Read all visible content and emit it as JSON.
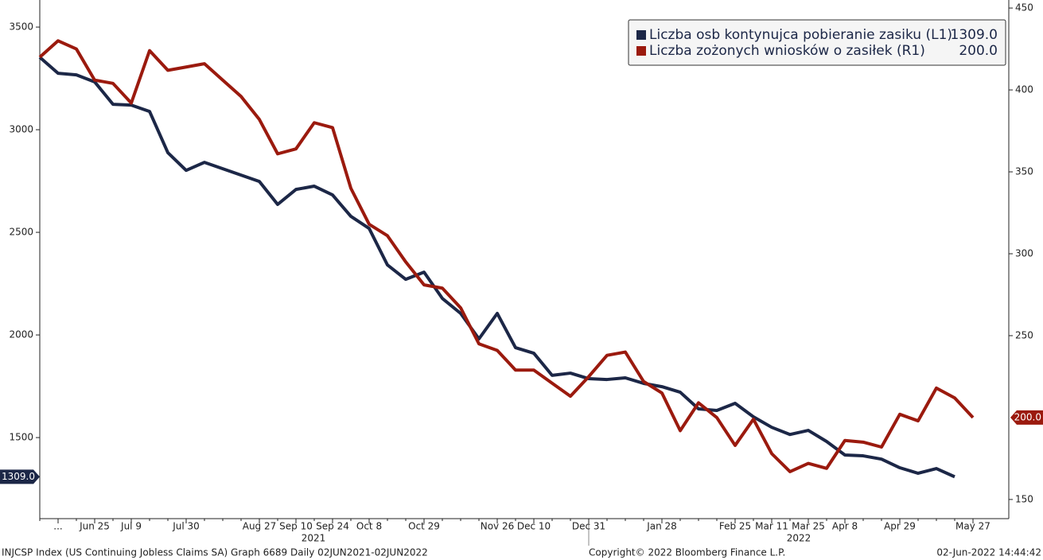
{
  "chart_data": {
    "type": "line",
    "categories": [
      null,
      "...",
      null,
      "Jun 25",
      null,
      "Jul 9",
      null,
      null,
      "Jul 30",
      null,
      null,
      null,
      "Aug 27",
      null,
      "Sep 10",
      null,
      "Sep 24",
      null,
      "Oct 8",
      null,
      null,
      "Oct 29",
      null,
      null,
      null,
      "Nov 26",
      null,
      "Dec 10",
      null,
      null,
      "Dec 31",
      null,
      null,
      null,
      "Jan 28",
      null,
      null,
      null,
      "Feb 25",
      null,
      "Mar 11",
      null,
      "Mar 25",
      null,
      "Apr 8",
      null,
      null,
      "Apr 29",
      null,
      null,
      null,
      "May 27"
    ],
    "years": [
      "2021",
      "2022"
    ],
    "series": [
      {
        "name": "Liczba osb kontynujca pobieranie zasiku (L1)",
        "color": "#1c2747",
        "axis": "y",
        "values": [
          3353,
          3275,
          3267,
          3233,
          3124,
          3120,
          3089,
          2888,
          2802,
          2841,
          2810,
          2779,
          2748,
          2636,
          2709,
          2725,
          2682,
          2578,
          2519,
          2341,
          2271,
          2306,
          2178,
          2105,
          1981,
          2105,
          1938,
          1911,
          1803,
          1814,
          1787,
          1783,
          1791,
          1764,
          1748,
          1721,
          1640,
          1632,
          1667,
          1601,
          1550,
          1515,
          1535,
          1481,
          1415,
          1411,
          1395,
          1353,
          1326,
          1349,
          1309,
          null
        ],
        "value_labels": [
          null,
          null,
          null,
          null,
          null,
          null,
          null,
          null,
          null,
          null,
          null,
          null,
          null,
          null,
          null,
          null,
          null,
          null,
          null,
          null,
          null,
          null,
          null,
          null,
          null,
          null,
          null,
          null,
          null,
          null,
          null,
          null,
          null,
          null,
          null,
          null,
          null,
          null,
          null,
          null,
          null,
          null,
          null,
          null,
          null,
          null,
          null,
          null,
          null,
          null,
          "1309.0",
          null
        ]
      },
      {
        "name": "Liczba zożonych wniosków o zasiłek (R1)",
        "color": "#9b1a0e",
        "axis": "y2",
        "values": [
          420,
          430,
          425,
          406,
          404,
          392,
          424,
          412,
          414,
          416,
          406,
          396,
          382,
          361,
          364,
          380,
          377,
          340,
          318,
          311,
          295,
          281,
          279,
          267,
          245,
          241,
          229,
          229,
          221,
          213,
          225,
          238,
          240,
          222,
          215,
          192,
          209,
          200,
          183,
          199,
          178,
          167,
          172,
          169,
          186,
          185,
          182,
          202,
          198,
          218,
          212,
          200
        ],
        "value_labels": [
          null,
          null,
          null,
          null,
          null,
          null,
          null,
          null,
          null,
          null,
          null,
          null,
          null,
          null,
          null,
          null,
          null,
          null,
          null,
          null,
          null,
          null,
          null,
          null,
          null,
          null,
          null,
          null,
          null,
          null,
          null,
          null,
          null,
          null,
          null,
          null,
          null,
          null,
          null,
          null,
          null,
          null,
          null,
          null,
          null,
          null,
          null,
          null,
          null,
          null,
          null,
          "200.0"
        ]
      }
    ],
    "ylim": [
      1105,
      3632
    ],
    "yticks": [
      1500,
      2000,
      2500,
      3000,
      3500
    ],
    "y2lim": [
      138.3,
      454.9
    ],
    "y2ticks": [
      150,
      250,
      300,
      350,
      400,
      450
    ],
    "legend": "top-right",
    "footer": {
      "left": "INJCSP Index (US Continuing Jobless Claims SA) Graph 6689  Daily 02JUN2021-02JUN2022",
      "center": "Copyright© 2022 Bloomberg Finance L.P.",
      "right": "02-Jun-2022 14:44:42"
    }
  }
}
